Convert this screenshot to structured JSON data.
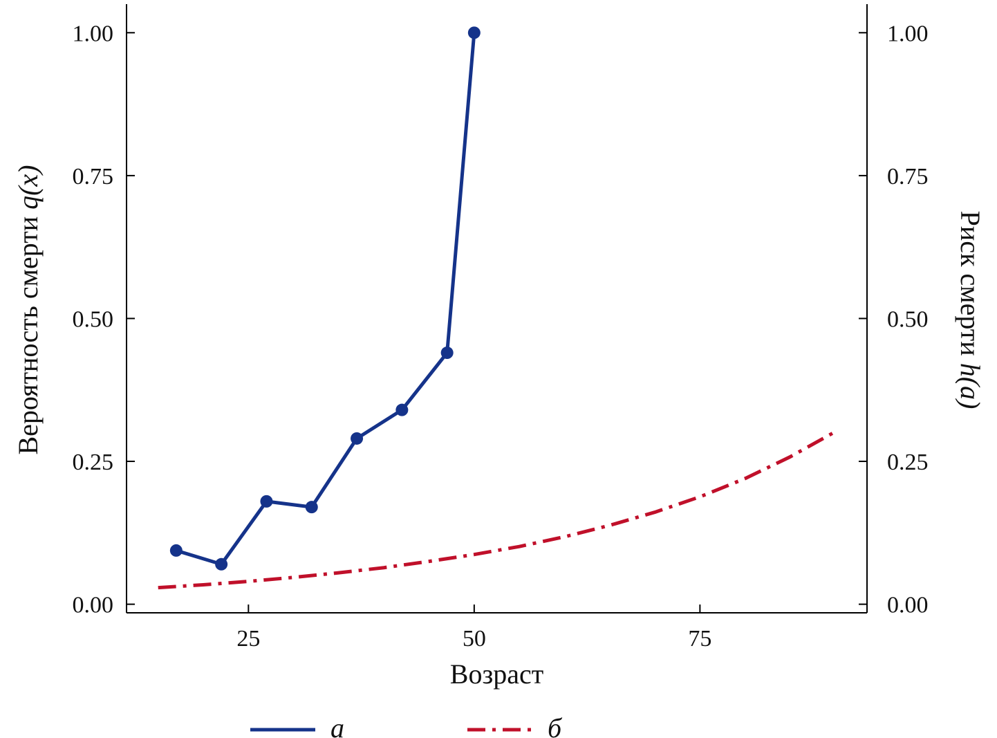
{
  "chart_data": {
    "type": "line",
    "xlabel": "Возраст",
    "ylabel_left_prefix": "Вероятность смерти ",
    "ylabel_left_symbol": "q(x)",
    "ylabel_right_prefix": "Риск смерти ",
    "ylabel_right_symbol": "h(a)",
    "xlim": [
      11.5,
      93.5
    ],
    "ylim": [
      -0.015,
      1.05
    ],
    "x_ticks": [
      25,
      50,
      75
    ],
    "y_ticks": [
      0.0,
      0.25,
      0.5,
      0.75,
      1.0
    ],
    "y_tick_labels": [
      "0.00",
      "0.25",
      "0.50",
      "0.75",
      "1.00"
    ],
    "grid": false,
    "legend_position": "bottom-center",
    "series": [
      {
        "name": "а",
        "style": "solid-markers",
        "color": "#15338a",
        "x": [
          17,
          22,
          27,
          32,
          37,
          42,
          47,
          50
        ],
        "y": [
          0.094,
          0.07,
          0.18,
          0.17,
          0.29,
          0.34,
          0.44,
          1.0
        ]
      },
      {
        "name": "б",
        "style": "dash-dot",
        "color": "#c0102a",
        "x": [
          15,
          20,
          25,
          30,
          35,
          40,
          45,
          50,
          55,
          60,
          65,
          70,
          75,
          80,
          85,
          90
        ],
        "y": [
          0.029,
          0.034,
          0.04,
          0.047,
          0.055,
          0.064,
          0.075,
          0.087,
          0.101,
          0.118,
          0.138,
          0.161,
          0.188,
          0.22,
          0.258,
          0.302
        ]
      }
    ]
  }
}
